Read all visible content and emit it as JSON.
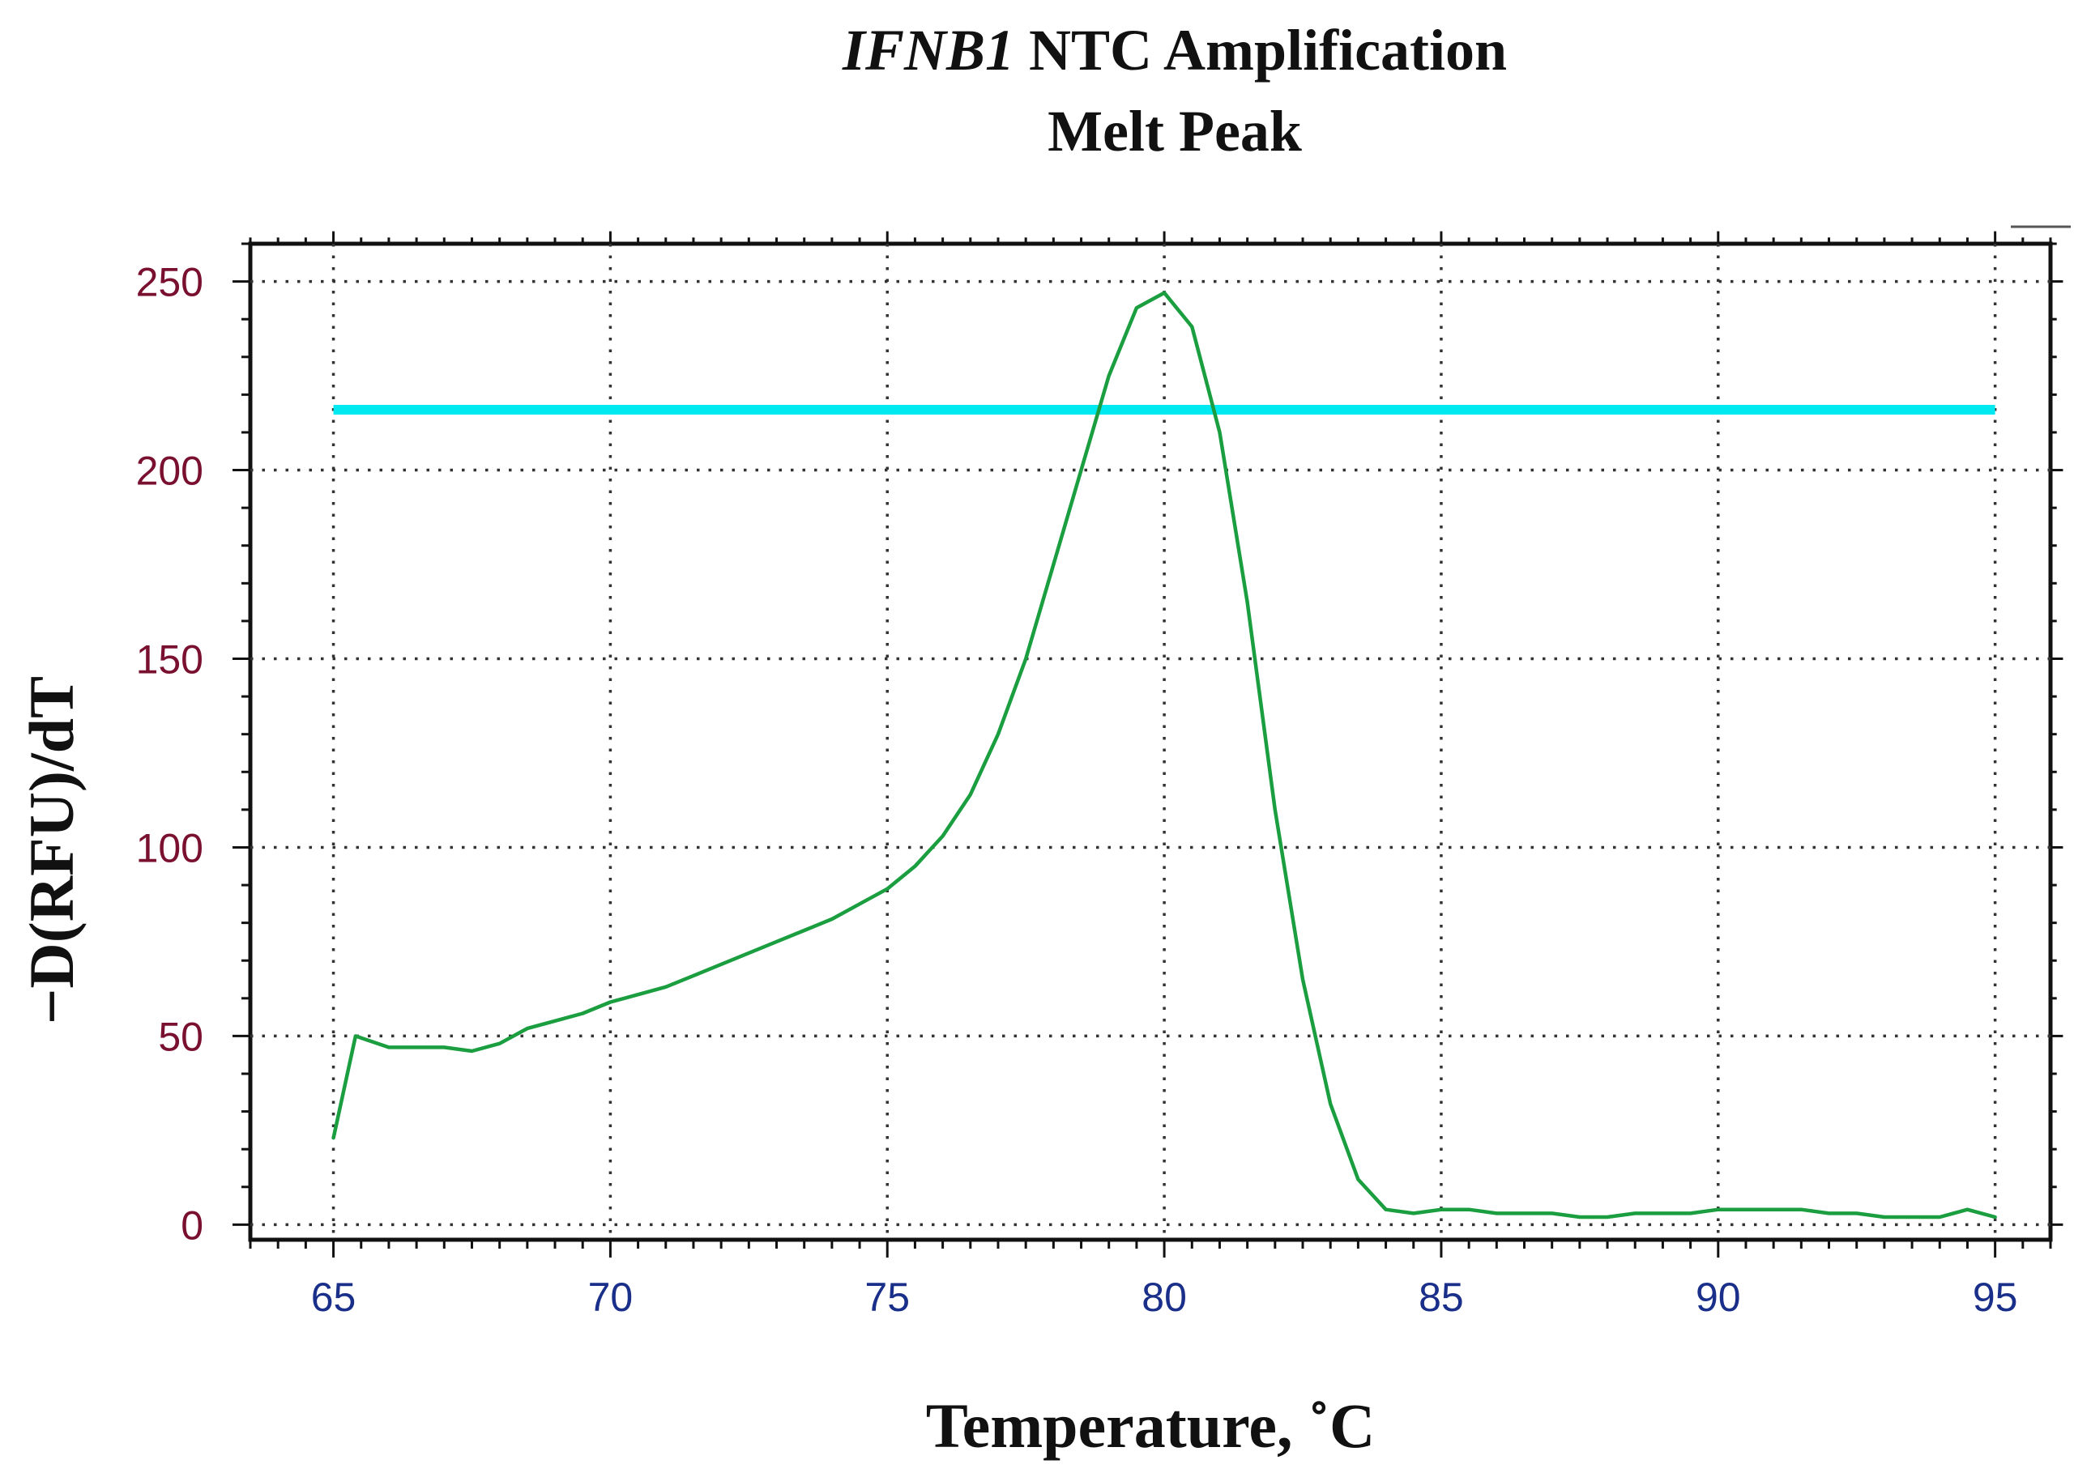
{
  "chart_data": {
    "type": "line",
    "title": {
      "italic_part": "IFNB1",
      "rest_part": " NTC Amplification",
      "line2": "Melt Peak"
    },
    "xlabel": "Temperature, ˚C",
    "ylabel": "−D(RFU)/dT",
    "xlim": [
      63.5,
      96
    ],
    "ylim": [
      -4,
      260
    ],
    "x_ticks": [
      65,
      70,
      75,
      80,
      85,
      90,
      95
    ],
    "x_tick_labels": [
      "65",
      "70",
      "75",
      "80",
      "85",
      "90",
      "95"
    ],
    "y_ticks": [
      0,
      50,
      100,
      150,
      200,
      250
    ],
    "y_tick_labels": [
      "0",
      "50",
      "100",
      "150",
      "200",
      "250"
    ],
    "grid": true,
    "colors": {
      "series": "#1a9e3f",
      "threshold": "#00e8f0",
      "x_tick_label": "#1a2f8a",
      "y_tick_label": "#7a1030",
      "grid": "#333333"
    },
    "series": [
      {
        "x": [
          65.0,
          65.4,
          65.6,
          66.0,
          66.5,
          67.0,
          67.5,
          68.0,
          68.5,
          69.0,
          69.5,
          70.0,
          70.5,
          71.0,
          71.5,
          72.0,
          72.5,
          73.0,
          73.5,
          74.0,
          74.5,
          75.0,
          75.5,
          76.0,
          76.5,
          77.0,
          77.5,
          78.0,
          78.5,
          79.0,
          79.5,
          80.0,
          80.5,
          81.0,
          81.5,
          82.0,
          82.5,
          83.0,
          83.5,
          84.0,
          84.5,
          85.0,
          85.5,
          86.0,
          86.5,
          87.0,
          87.5,
          88.0,
          88.5,
          89.0,
          89.5,
          90.0,
          90.5,
          91.0,
          91.5,
          92.0,
          92.5,
          93.0,
          93.5,
          94.0,
          94.5,
          95.0
        ],
        "y": [
          23,
          50,
          49,
          47,
          47,
          47,
          46,
          48,
          52,
          54,
          56,
          59,
          61,
          63,
          66,
          69,
          72,
          75,
          78,
          81,
          85,
          89,
          95,
          103,
          114,
          130,
          150,
          175,
          200,
          225,
          243,
          247,
          238,
          210,
          165,
          110,
          65,
          32,
          12,
          4,
          3,
          4,
          4,
          3,
          3,
          3,
          2,
          2,
          3,
          3,
          3,
          4,
          4,
          4,
          4,
          3,
          3,
          2,
          2,
          2,
          4,
          2
        ]
      },
      {
        "x": [
          65,
          95
        ],
        "y": [
          216,
          216
        ]
      }
    ]
  }
}
